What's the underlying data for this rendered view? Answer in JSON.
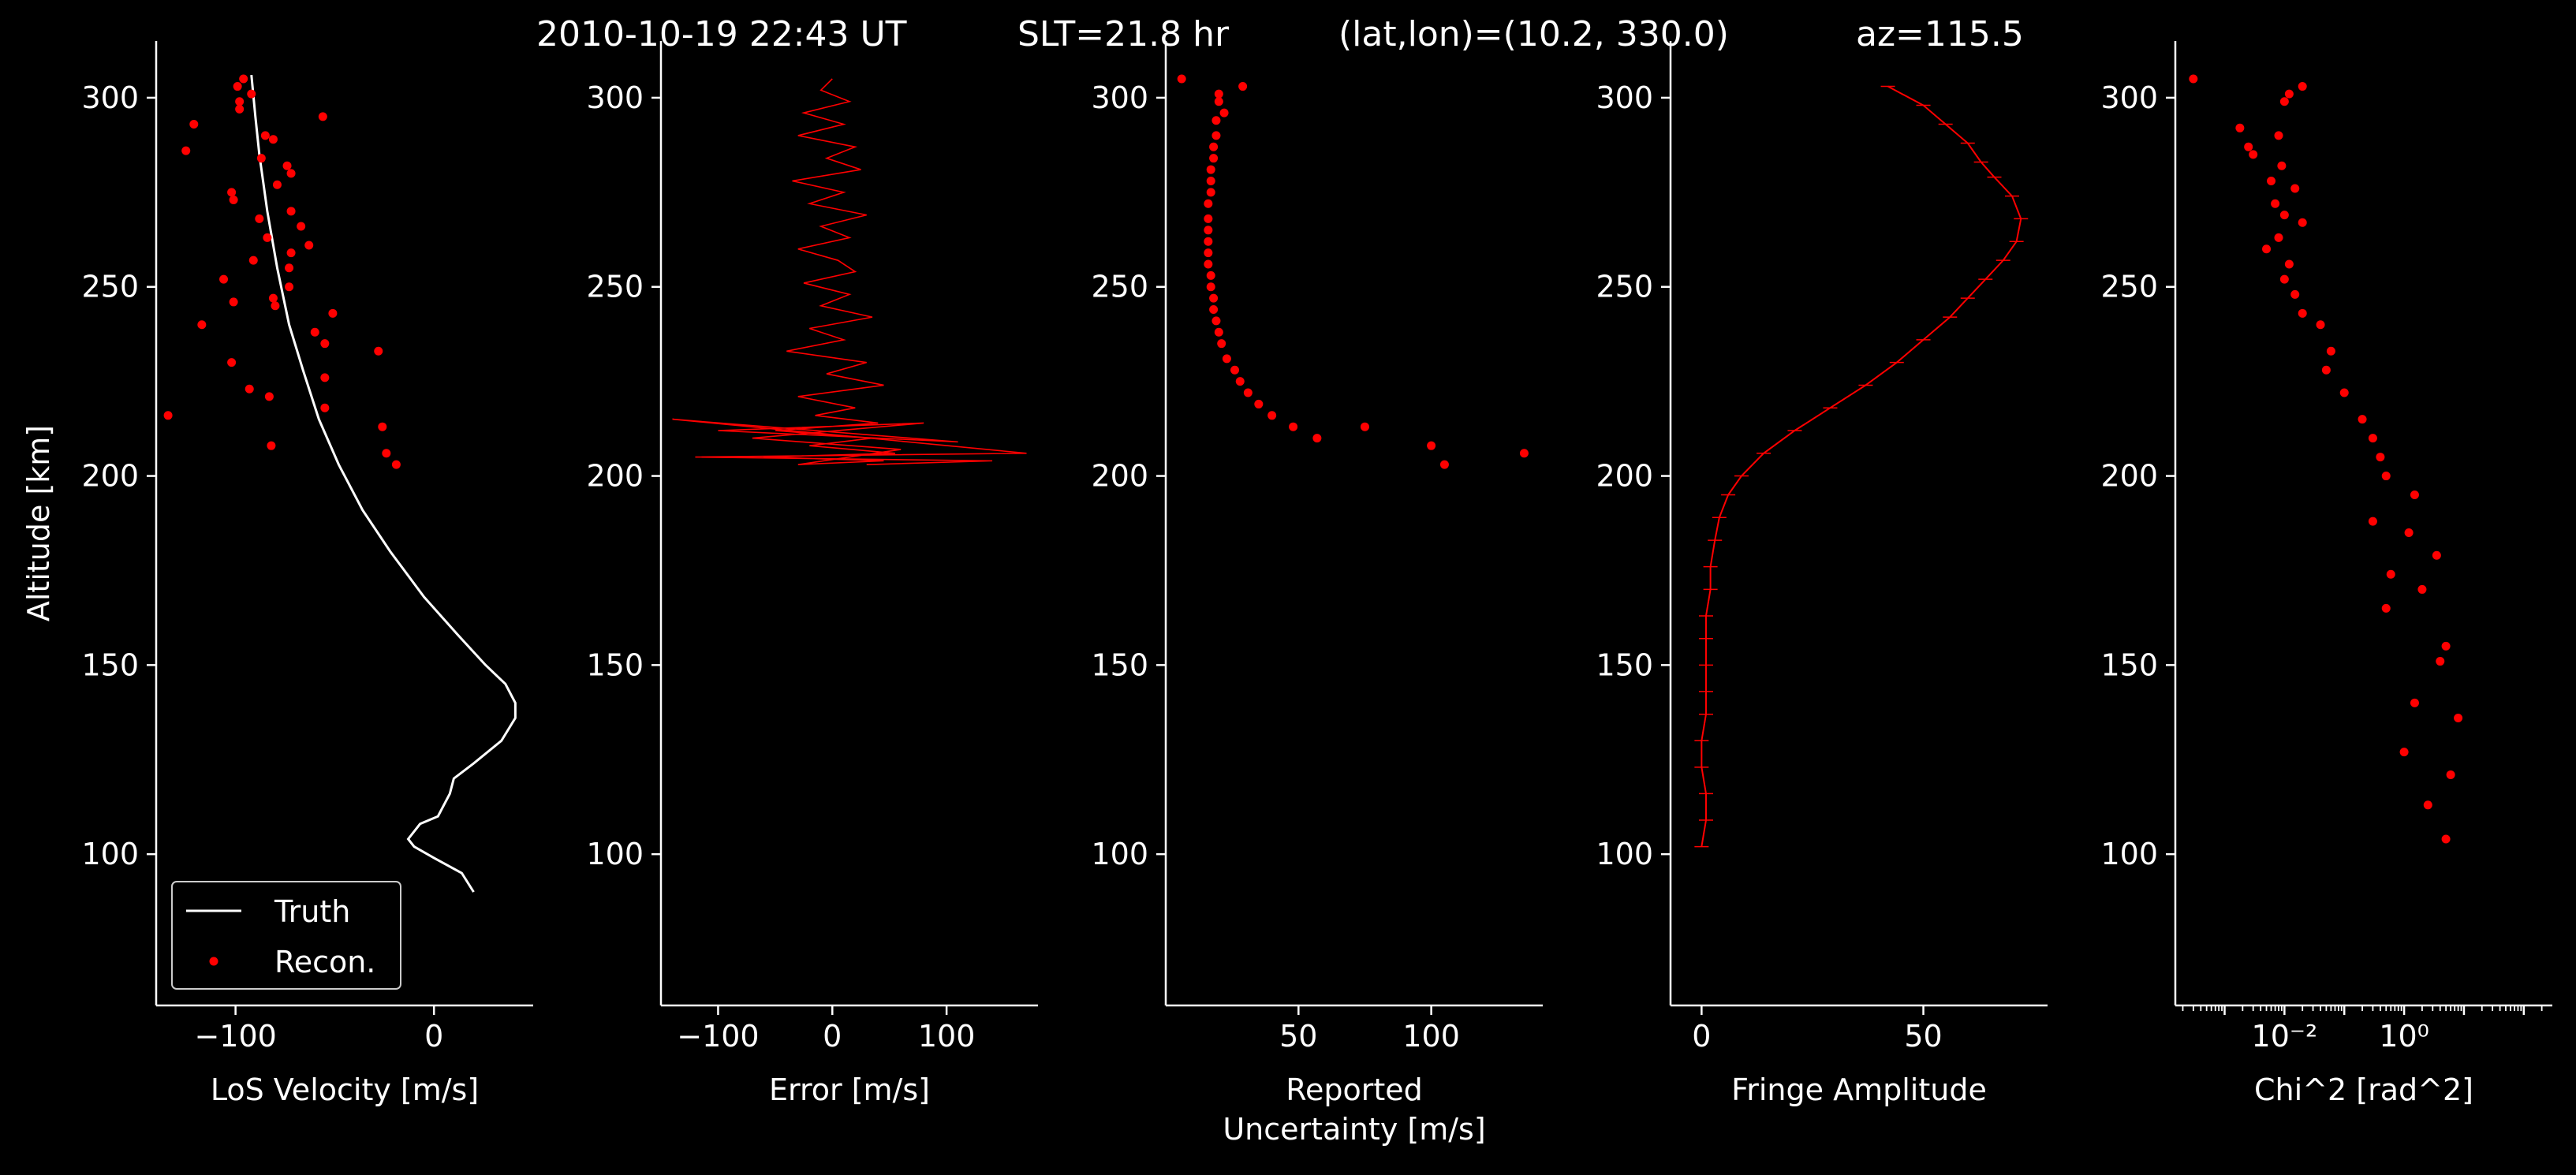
{
  "title": {
    "time": "2010-10-19 22:43 UT",
    "slt": "SLT=21.8 hr",
    "latlon": "(lat,lon)=(10.2, 330.0)",
    "az": "az=115.5"
  },
  "colors": {
    "background": "#000000",
    "foreground": "#ffffff",
    "recon": "#ff0000",
    "truth": "#ffffff"
  },
  "chart_data": [
    {
      "type": "line",
      "xlabel": "LoS Velocity [m/s]",
      "ylabel": "Altitude [km]",
      "xlim": [
        -140,
        50
      ],
      "ylim": [
        60,
        315
      ],
      "xticks": [
        -100,
        0
      ],
      "xtick_labels": [
        "−100",
        "0"
      ],
      "yticks": [
        100,
        150,
        200,
        250,
        300
      ],
      "ytick_labels": [
        "100",
        "150",
        "200",
        "250",
        "300"
      ],
      "legend": {
        "placement": "lower-left",
        "entries": [
          "Truth",
          "Recon."
        ]
      },
      "series": [
        {
          "name": "Truth",
          "style": "line",
          "x": [
            -92,
            -90,
            -88,
            -84,
            -79,
            -73,
            -66,
            -58,
            -48,
            -36,
            -22,
            -5,
            12,
            26,
            36,
            41,
            41,
            34,
            20,
            10,
            8,
            2,
            -7,
            -13,
            -10,
            0,
            14,
            20
          ],
          "y": [
            306,
            295,
            285,
            270,
            255,
            240,
            228,
            215,
            203,
            191,
            180,
            168,
            158,
            150,
            145,
            140,
            136,
            130,
            124,
            120,
            116,
            110,
            108,
            104,
            102,
            99,
            95,
            90
          ]
        },
        {
          "name": "Recon.",
          "style": "points",
          "x": [
            -96,
            -99,
            -92,
            -98,
            -121,
            -98,
            -81,
            -125,
            -85,
            -56,
            -74,
            -72,
            -87,
            -102,
            -101,
            -79,
            -72,
            -88,
            -84,
            -63,
            -67,
            -91,
            -73,
            -72,
            -106,
            -73,
            -81,
            -101,
            -51,
            -80,
            -117,
            -60,
            -55,
            -102,
            -28,
            -55,
            -93,
            -55,
            -83,
            -134,
            -26,
            -24,
            -82,
            -19
          ],
          "y": [
            305,
            303,
            301,
            299,
            293,
            297,
            289,
            286,
            290,
            295,
            282,
            280,
            284,
            275,
            273,
            277,
            270,
            268,
            263,
            261,
            266,
            257,
            255,
            259,
            252,
            250,
            247,
            246,
            243,
            245,
            240,
            238,
            235,
            230,
            233,
            226,
            223,
            218,
            221,
            216,
            213,
            206,
            208,
            203
          ]
        }
      ]
    },
    {
      "type": "line",
      "xlabel": "Error [m/s]",
      "xlim": [
        -150,
        180
      ],
      "ylim": [
        60,
        315
      ],
      "xticks": [
        -100,
        0,
        100
      ],
      "xtick_labels": [
        "−100",
        "0",
        "100"
      ],
      "yticks": [
        100,
        150,
        200,
        250,
        300
      ],
      "ytick_labels": [
        "100",
        "150",
        "200",
        "250",
        "300"
      ],
      "series": [
        {
          "name": "",
          "style": "jagged-line",
          "x": [
            0,
            -10,
            15,
            -25,
            10,
            -30,
            20,
            -5,
            25,
            -35,
            10,
            -20,
            30,
            -10,
            15,
            -30,
            5,
            20,
            -25,
            15,
            -10,
            35,
            -20,
            10,
            -40,
            30,
            -5,
            45,
            -30,
            20,
            -15,
            40,
            -50,
            35,
            -20,
            55,
            -60,
            45,
            -30,
            60,
            -70,
            80,
            -100,
            110,
            -140,
            170,
            -120,
            140,
            30
          ],
          "y": [
            305,
            302,
            299,
            296,
            293,
            290,
            287,
            284,
            281,
            278,
            275,
            272,
            269,
            266,
            263,
            260,
            257,
            254,
            251,
            248,
            245,
            242,
            239,
            236,
            233,
            230,
            227,
            224,
            221,
            218,
            216,
            214,
            212,
            210,
            208,
            206,
            205,
            204,
            203,
            207,
            210,
            214,
            212,
            209,
            215,
            206,
            205,
            204,
            203
          ]
        }
      ]
    },
    {
      "type": "scatter",
      "xlabel": "Reported\nUncertainty [m/s]",
      "xlim": [
        0,
        142
      ],
      "ylim": [
        60,
        315
      ],
      "xticks": [
        50,
        100
      ],
      "xtick_labels": [
        "50",
        "100"
      ],
      "yticks": [
        100,
        150,
        200,
        250,
        300
      ],
      "ytick_labels": [
        "100",
        "150",
        "200",
        "250",
        "300"
      ],
      "series": [
        {
          "name": "",
          "style": "points",
          "x": [
            6,
            29,
            20,
            20,
            22,
            19,
            19,
            18,
            18,
            17,
            17,
            17,
            16,
            16,
            16,
            16,
            16,
            16,
            17,
            17,
            18,
            18,
            19,
            20,
            21,
            23,
            26,
            28,
            31,
            35,
            40,
            48,
            57,
            75,
            100,
            105,
            135
          ],
          "y": [
            305,
            303,
            301,
            299,
            296,
            294,
            290,
            287,
            284,
            281,
            278,
            275,
            272,
            268,
            265,
            262,
            259,
            256,
            253,
            250,
            247,
            244,
            241,
            238,
            235,
            231,
            228,
            225,
            222,
            219,
            216,
            213,
            210,
            213,
            208,
            203,
            206
          ]
        }
      ]
    },
    {
      "type": "line",
      "xlabel": "Fringe Amplitude",
      "xlim": [
        -7,
        78
      ],
      "ylim": [
        60,
        315
      ],
      "xticks": [
        0,
        50
      ],
      "xtick_labels": [
        "0",
        "50"
      ],
      "yticks": [
        100,
        150,
        200,
        250,
        300
      ],
      "ytick_labels": [
        "100",
        "150",
        "200",
        "250",
        "300"
      ],
      "series": [
        {
          "name": "",
          "style": "line-with-errorbars",
          "x": [
            42,
            50,
            55,
            60,
            63,
            66,
            70,
            72,
            71,
            68,
            64,
            60,
            56,
            50,
            44,
            37,
            29,
            21,
            14,
            9,
            6,
            4,
            3,
            2,
            2,
            1,
            1,
            1,
            1,
            1,
            0,
            0,
            1,
            1,
            0
          ],
          "y": [
            303,
            298,
            293,
            288,
            283,
            279,
            274,
            268,
            262,
            257,
            252,
            247,
            242,
            236,
            230,
            224,
            218,
            212,
            206,
            200,
            195,
            189,
            183,
            176,
            170,
            163,
            157,
            150,
            143,
            137,
            130,
            123,
            116,
            109,
            102
          ]
        }
      ]
    },
    {
      "type": "scatter",
      "xlabel": "Chi^2 [rad^2]",
      "xscale": "log",
      "xlim": [
        0.00015,
        300
      ],
      "ylim": [
        60,
        315
      ],
      "xticks": [
        0.01,
        1
      ],
      "xtick_labels": [
        "10⁻²",
        "10⁰"
      ],
      "yticks": [
        100,
        150,
        200,
        250,
        300
      ],
      "ytick_labels": [
        "100",
        "150",
        "200",
        "250",
        "300"
      ],
      "series": [
        {
          "name": "",
          "style": "points",
          "x": [
            0.0003,
            0.02,
            0.012,
            0.01,
            0.0018,
            0.0025,
            0.003,
            0.008,
            0.009,
            0.006,
            0.015,
            0.007,
            0.01,
            0.02,
            0.008,
            0.005,
            0.012,
            0.01,
            0.015,
            0.02,
            0.04,
            0.06,
            0.05,
            0.1,
            0.2,
            0.3,
            0.4,
            0.5,
            1.5,
            0.3,
            1.2,
            3.5,
            0.6,
            2.0,
            0.5,
            5.0,
            4.0,
            1.5,
            8.0,
            1.0,
            6.0,
            2.5,
            5.0
          ],
          "y": [
            305,
            303,
            301,
            299,
            292,
            287,
            285,
            290,
            282,
            278,
            276,
            272,
            269,
            267,
            263,
            260,
            256,
            252,
            248,
            243,
            240,
            233,
            228,
            222,
            215,
            210,
            205,
            200,
            195,
            188,
            185,
            179,
            174,
            170,
            165,
            155,
            151,
            140,
            136,
            127,
            121,
            113,
            104
          ]
        }
      ]
    }
  ]
}
